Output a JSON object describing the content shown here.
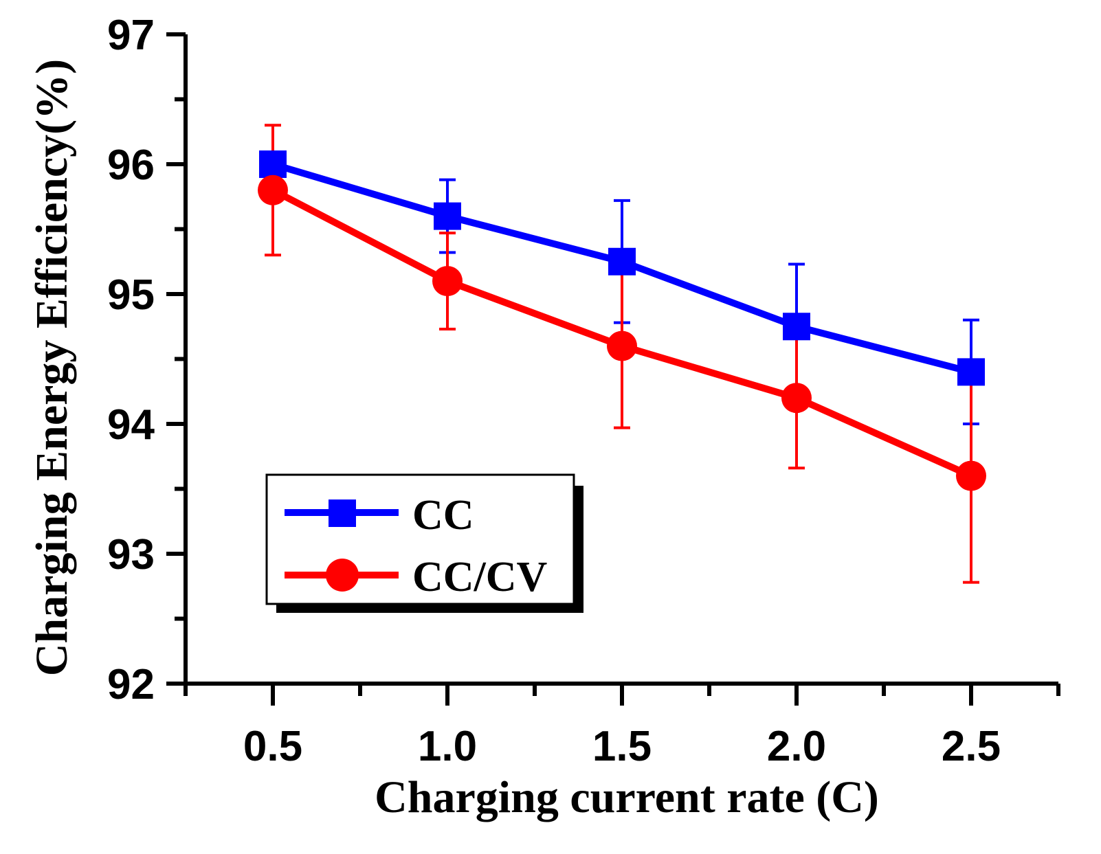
{
  "chart_data": {
    "type": "line",
    "title": "",
    "xlabel": "Charging current rate (C)",
    "ylabel": "Charging Energy Efficiency(%)",
    "x": [
      0.5,
      1.0,
      1.5,
      2.0,
      2.5
    ],
    "x_tick_labels": [
      "0.5",
      "1.0",
      "1.5",
      "2.0",
      "2.5"
    ],
    "y_tick_labels": [
      "92",
      "93",
      "94",
      "95",
      "96",
      "97"
    ],
    "xlim": [
      0.25,
      2.75
    ],
    "ylim": [
      92,
      97
    ],
    "grid": false,
    "legend_position": "bottom-left",
    "series": [
      {
        "name": "CC",
        "color": "#0000ff",
        "marker": "square",
        "values": [
          96.0,
          95.6,
          95.25,
          94.75,
          94.4
        ],
        "error": [
          0.0,
          0.28,
          0.47,
          0.48,
          0.4
        ]
      },
      {
        "name": "CC/CV",
        "color": "#ff0000",
        "marker": "circle",
        "values": [
          95.8,
          95.1,
          94.6,
          94.2,
          93.6
        ],
        "error": [
          0.5,
          0.37,
          0.63,
          0.54,
          0.82
        ]
      }
    ]
  }
}
